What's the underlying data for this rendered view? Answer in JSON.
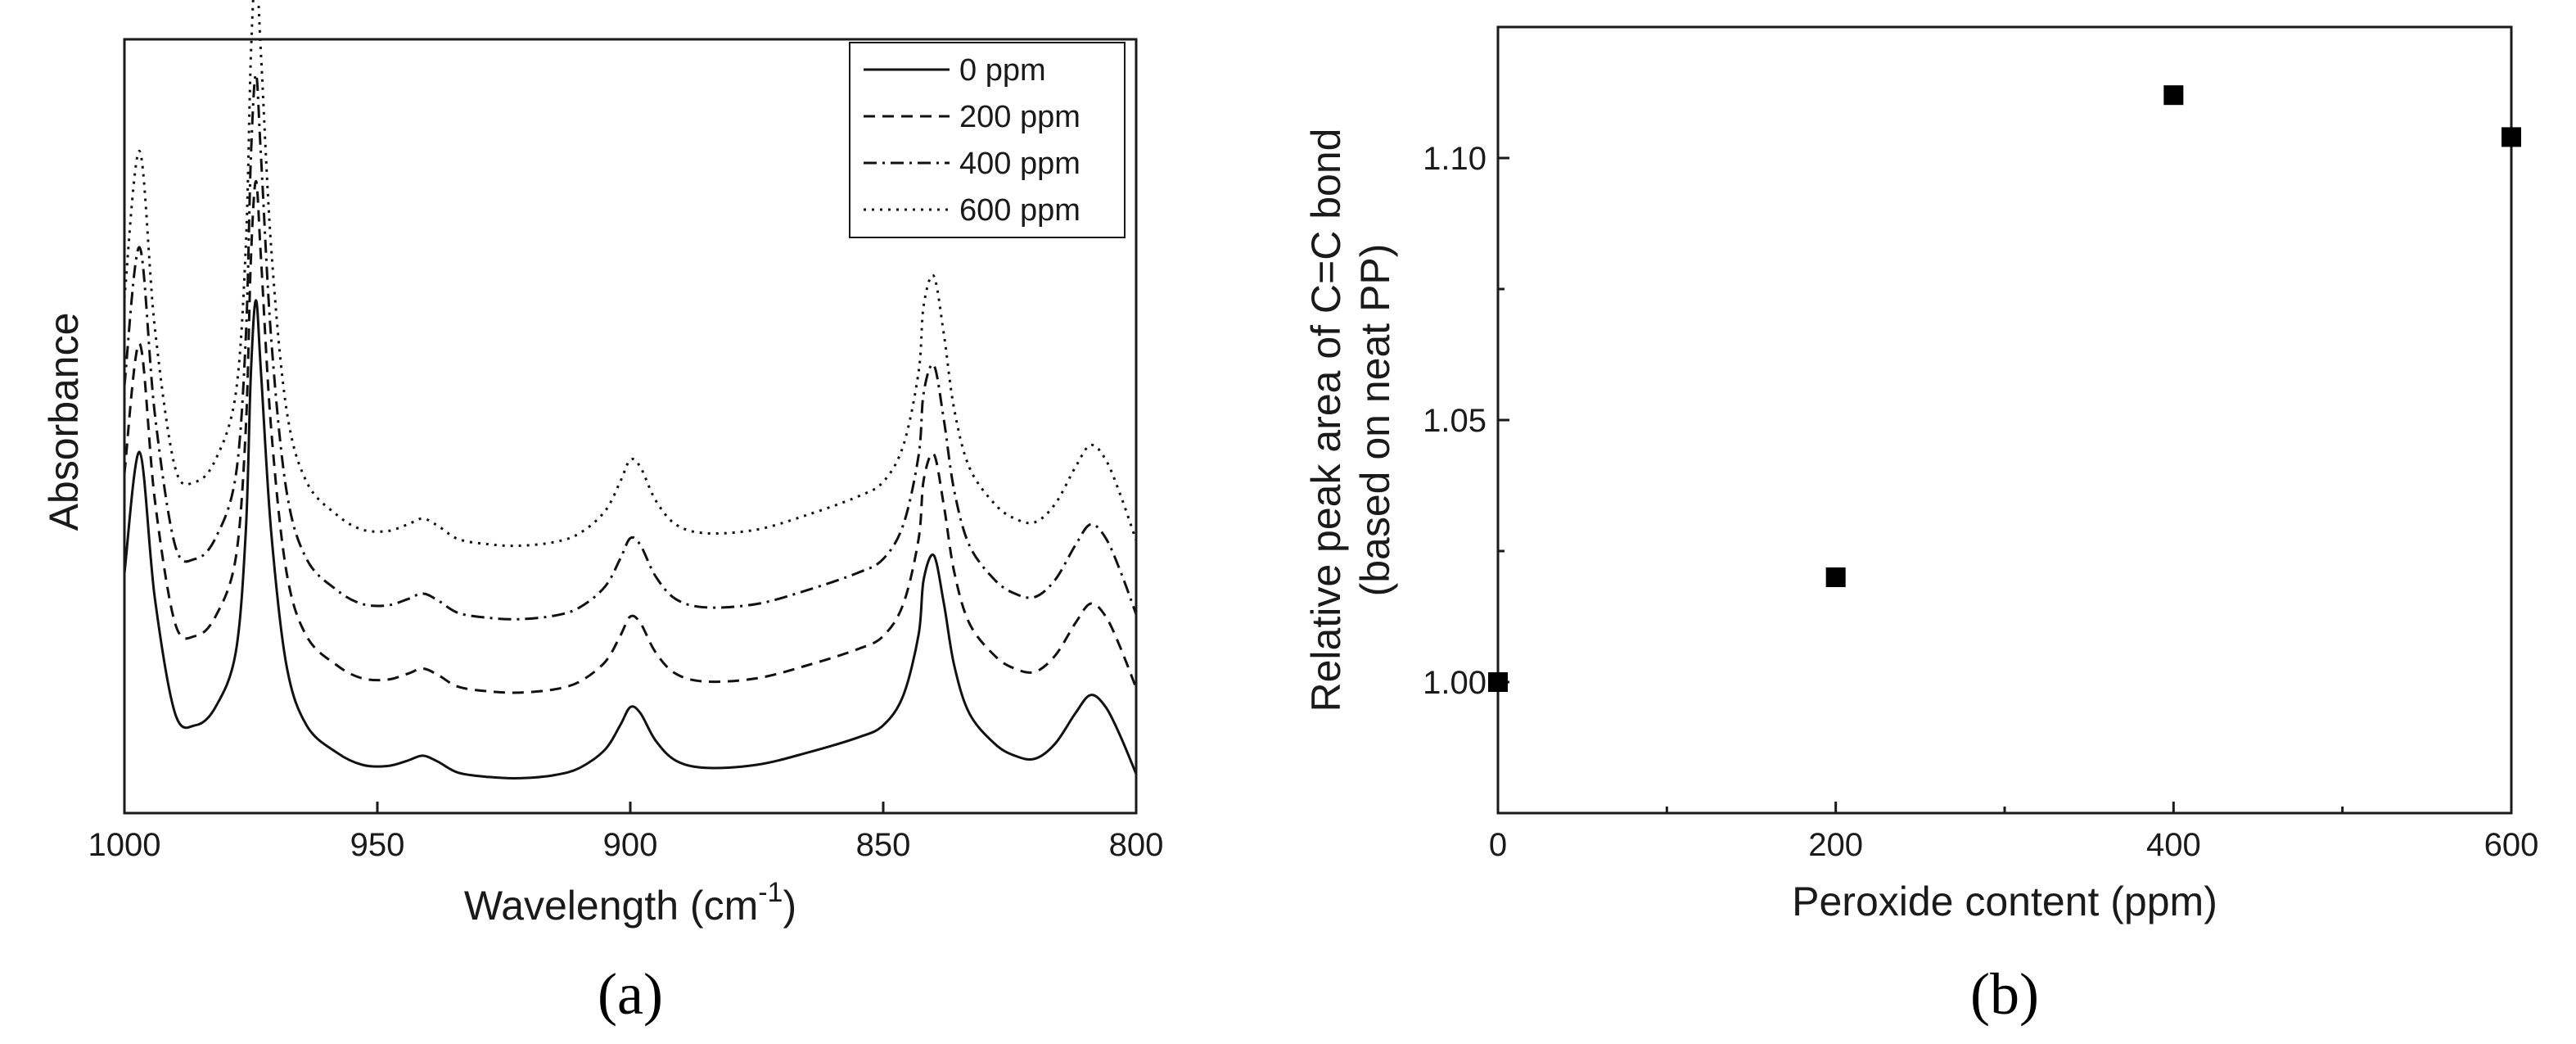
{
  "chart_data": [
    {
      "panel": "a",
      "type": "line",
      "title": "",
      "xlabel": "Wavelength (cm",
      "xlabel_sup": "-1",
      "xlabel_close": ")",
      "ylabel": "Absorbance",
      "xlim": [
        1000,
        800
      ],
      "ylim": [
        0,
        1
      ],
      "x_ticks": [
        1000,
        950,
        900,
        850,
        800
      ],
      "x_tick_labels": [
        "1000",
        "950",
        "900",
        "850",
        "800"
      ],
      "grid": false,
      "legend_position": "top-right",
      "baseline": [
        [
          1000,
          0.35
        ],
        [
          997,
          0.55
        ],
        [
          994,
          0.31
        ],
        [
          990,
          0.12
        ],
        [
          986,
          0.1
        ],
        [
          982,
          0.13
        ],
        [
          978,
          0.22
        ],
        [
          976,
          0.42
        ],
        [
          975,
          0.68
        ],
        [
          974,
          0.8
        ],
        [
          973,
          0.68
        ],
        [
          971,
          0.42
        ],
        [
          968,
          0.2
        ],
        [
          964,
          0.1
        ],
        [
          958,
          0.055
        ],
        [
          953,
          0.035
        ],
        [
          948,
          0.033
        ],
        [
          944,
          0.042
        ],
        [
          941,
          0.05
        ],
        [
          938,
          0.04
        ],
        [
          934,
          0.022
        ],
        [
          928,
          0.015
        ],
        [
          922,
          0.013
        ],
        [
          915,
          0.018
        ],
        [
          910,
          0.03
        ],
        [
          905,
          0.06
        ],
        [
          902,
          0.1
        ],
        [
          900,
          0.13
        ],
        [
          898,
          0.12
        ],
        [
          895,
          0.075
        ],
        [
          891,
          0.042
        ],
        [
          885,
          0.03
        ],
        [
          875,
          0.035
        ],
        [
          865,
          0.055
        ],
        [
          855,
          0.08
        ],
        [
          850,
          0.1
        ],
        [
          846,
          0.15
        ],
        [
          843,
          0.25
        ],
        [
          842,
          0.34
        ],
        [
          840,
          0.38
        ],
        [
          838,
          0.3
        ],
        [
          836,
          0.2
        ],
        [
          833,
          0.12
        ],
        [
          828,
          0.07
        ],
        [
          824,
          0.05
        ],
        [
          820,
          0.045
        ],
        [
          816,
          0.07
        ],
        [
          812,
          0.12
        ],
        [
          809,
          0.15
        ],
        [
          806,
          0.13
        ],
        [
          803,
          0.08
        ],
        [
          800,
          0.02
        ]
      ],
      "series": [
        {
          "name": "0 ppm",
          "legend_label": "0 ppm",
          "offset": 0.0,
          "scale": 1.0,
          "style": "solid"
        },
        {
          "name": "200 ppm",
          "legend_label": "200 ppm",
          "offset": 0.14,
          "scale": 1.07,
          "style": "dashed"
        },
        {
          "name": "400 ppm",
          "legend_label": "400 ppm",
          "offset": 0.26,
          "scale": 1.14,
          "style": "dashdot"
        },
        {
          "name": "600 ppm",
          "legend_label": "600 ppm",
          "offset": 0.38,
          "scale": 1.21,
          "style": "dotted"
        }
      ]
    },
    {
      "panel": "b",
      "type": "scatter",
      "title": "",
      "xlabel": "Peroxide content (ppm)",
      "ylabel": "Relative peak area of C=C bond",
      "ylabel2": "(based on neat PP)",
      "xlim": [
        0,
        600
      ],
      "ylim": [
        0.975,
        1.125
      ],
      "x_ticks": [
        0,
        200,
        400,
        600
      ],
      "x_tick_labels": [
        "0",
        "200",
        "400",
        "600"
      ],
      "x_minor_ticks": [
        100,
        300,
        500
      ],
      "y_ticks": [
        1.0,
        1.05,
        1.1
      ],
      "y_tick_labels": [
        "1.00",
        "1.05",
        "1.10"
      ],
      "grid": false,
      "x": [
        0,
        200,
        400,
        600
      ],
      "y": [
        1.0,
        1.02,
        1.112,
        1.104
      ],
      "marker": "square"
    }
  ],
  "panel_labels": [
    "(a)",
    "(b)"
  ]
}
